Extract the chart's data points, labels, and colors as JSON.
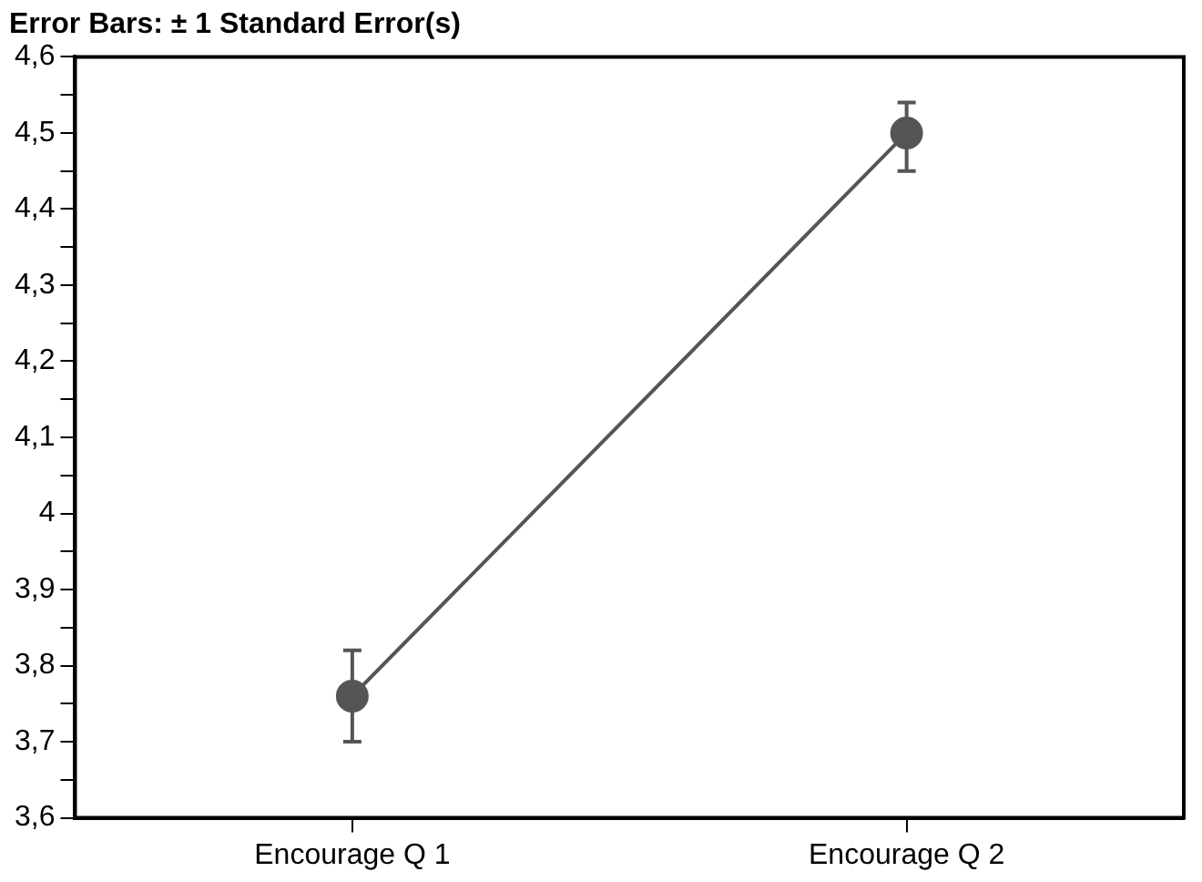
{
  "chart_data": {
    "type": "line",
    "title": "Error Bars: ± 1 Standard Error(s)",
    "categories": [
      "Encourage Q 1",
      "Encourage Q 2"
    ],
    "series": [
      {
        "color": "#555555",
        "values": [
          3.76,
          4.5
        ],
        "errors": [
          [
            3.7,
            3.82
          ],
          [
            4.45,
            4.54
          ]
        ]
      }
    ],
    "ylim": [
      3.6,
      4.6
    ],
    "yticks": [
      {
        "value": 3.6,
        "label": "3,6"
      },
      {
        "value": 3.65,
        "label": null
      },
      {
        "value": 3.7,
        "label": "3,7"
      },
      {
        "value": 3.75,
        "label": null
      },
      {
        "value": 3.8,
        "label": "3,8"
      },
      {
        "value": 3.85,
        "label": null
      },
      {
        "value": 3.9,
        "label": "3,9"
      },
      {
        "value": 3.95,
        "label": null
      },
      4,
      {
        "value": 4.05,
        "label": null
      },
      {
        "value": 4.1,
        "label": "4,1"
      },
      {
        "value": 4.15,
        "label": null
      },
      {
        "value": 4.2,
        "label": "4,2"
      },
      {
        "value": 4.25,
        "label": null
      },
      {
        "value": 4.3,
        "label": "4,3"
      },
      {
        "value": 4.35,
        "label": null
      },
      {
        "value": 4.4,
        "label": "4,4"
      },
      {
        "value": 4.45,
        "label": null
      },
      {
        "value": 4.5,
        "label": "4,5"
      },
      {
        "value": 4.55,
        "label": null
      },
      {
        "value": 4.6,
        "label": "4,6"
      }
    ],
    "grid": false,
    "legend": false,
    "marker": "circle",
    "line_style": "solid"
  }
}
